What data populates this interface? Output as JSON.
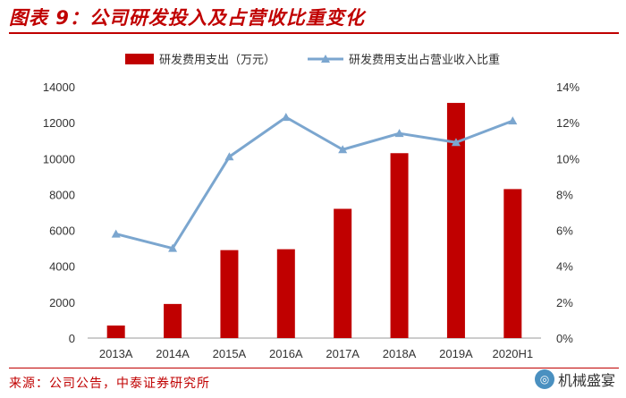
{
  "header": {
    "title": "图表 9：公司研发投入及占营收比重变化"
  },
  "footer": {
    "source": "来源：公司公告，中泰证券研究所",
    "watermark": "机械盛宴"
  },
  "chart_data": {
    "type": "bar",
    "categories": [
      "2013A",
      "2014A",
      "2015A",
      "2016A",
      "2017A",
      "2018A",
      "2019A",
      "2020H1"
    ],
    "series": [
      {
        "name": "研发费用支出（万元）",
        "type": "bar",
        "axis": "left",
        "color": "#c00000",
        "values": [
          700,
          1900,
          4900,
          4950,
          7200,
          10300,
          13100,
          8300
        ]
      },
      {
        "name": "研发费用支出占营业收入比重",
        "type": "line",
        "axis": "right",
        "color": "#7ba6cf",
        "values": [
          5.8,
          5.0,
          10.1,
          12.3,
          10.5,
          11.4,
          10.9,
          12.1
        ]
      }
    ],
    "y_left": {
      "min": 0,
      "max": 14000,
      "ticks": [
        "0",
        "2000",
        "4000",
        "6000",
        "8000",
        "10000",
        "12000",
        "14000"
      ]
    },
    "y_right": {
      "min": 0,
      "max": 14,
      "ticks": [
        "0%",
        "2%",
        "4%",
        "6%",
        "8%",
        "10%",
        "12%",
        "14%"
      ]
    },
    "legend_position": "top"
  }
}
